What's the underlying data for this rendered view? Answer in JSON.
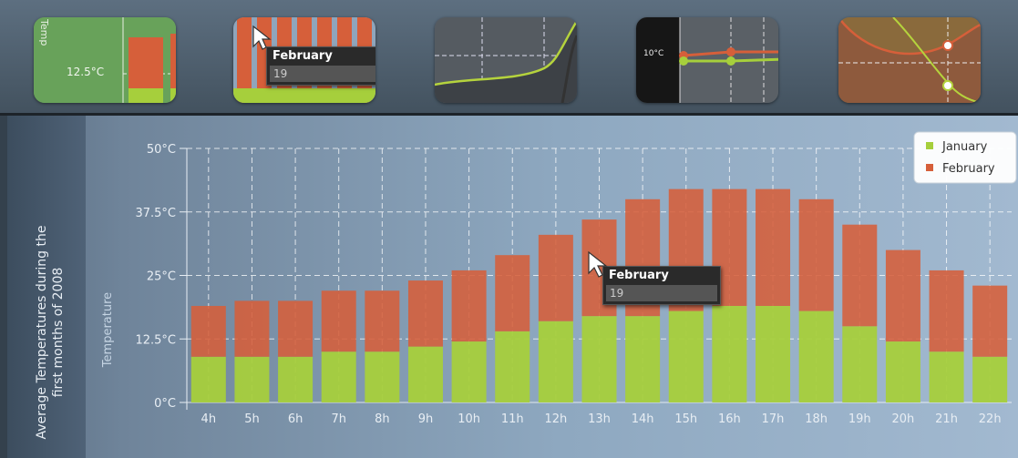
{
  "thumbnails": [
    {
      "id": "stacked-bar",
      "labels": [
        "Temp",
        "12.5°C"
      ]
    },
    {
      "id": "bar-tooltip",
      "tooltip": {
        "title": "February",
        "value": "19"
      }
    },
    {
      "id": "curve-grid"
    },
    {
      "id": "line-points",
      "labels": [
        "10°C"
      ]
    },
    {
      "id": "area-curves"
    }
  ],
  "sidebar": {
    "title": "Average Temperatures during the first months of 2008"
  },
  "tooltip": {
    "title": "February",
    "value": "19"
  },
  "colors": {
    "january": "#a6cf3c",
    "february": "#d65f3a"
  },
  "chart_data": {
    "type": "bar",
    "stacked": true,
    "categories": [
      "4h",
      "5h",
      "6h",
      "7h",
      "8h",
      "9h",
      "10h",
      "11h",
      "12h",
      "13h",
      "14h",
      "15h",
      "16h",
      "17h",
      "18h",
      "19h",
      "20h",
      "21h",
      "22h"
    ],
    "series": [
      {
        "name": "January",
        "values": [
          9,
          9,
          9,
          10,
          10,
          11,
          12,
          14,
          16,
          17,
          17,
          18,
          19,
          19,
          18,
          15,
          12,
          10,
          9
        ]
      },
      {
        "name": "February",
        "values": [
          10,
          11,
          11,
          12,
          12,
          13,
          14,
          15,
          17,
          19,
          23,
          24,
          23,
          23,
          22,
          20,
          18,
          16,
          14
        ]
      }
    ],
    "ylabel": "Temperature",
    "ylim": [
      0,
      50
    ],
    "yticks": [
      0,
      12.5,
      25,
      37.5,
      50
    ],
    "ytick_labels": [
      "0°C",
      "12.5°C",
      "25°C",
      "37.5°C",
      "50°C"
    ],
    "grid": true,
    "legend": "top-right"
  }
}
